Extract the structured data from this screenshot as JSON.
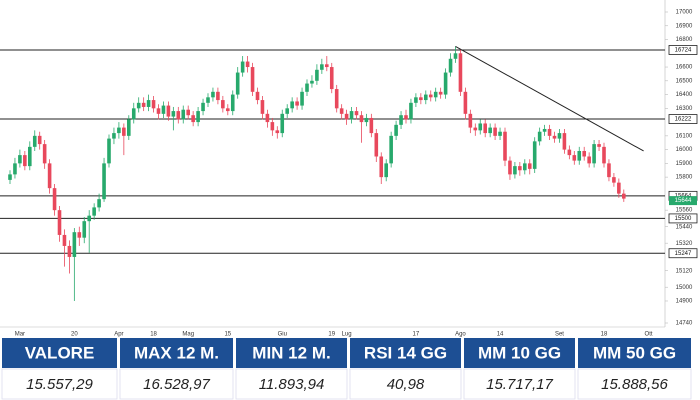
{
  "chart_data": {
    "type": "candlestick",
    "categories": [
      null,
      null,
      "Mar",
      null,
      null,
      null,
      null,
      null,
      null,
      null,
      null,
      null,
      null,
      "20",
      null,
      null,
      null,
      null,
      null,
      null,
      null,
      null,
      "Apr",
      null,
      null,
      null,
      null,
      null,
      null,
      "18",
      null,
      null,
      null,
      null,
      null,
      null,
      "Mag",
      null,
      null,
      null,
      null,
      null,
      null,
      null,
      "15",
      null,
      null,
      null,
      null,
      null,
      null,
      null,
      null,
      null,
      null,
      "Giu",
      null,
      null,
      null,
      null,
      null,
      null,
      null,
      null,
      null,
      "19",
      null,
      null,
      "Lug",
      null,
      null,
      null,
      null,
      null,
      null,
      null,
      null,
      null,
      null,
      null,
      null,
      null,
      "17",
      null,
      null,
      null,
      null,
      null,
      null,
      null,
      null,
      "Ago",
      null,
      null,
      null,
      null,
      null,
      null,
      null,
      "14",
      null,
      null,
      null,
      null,
      null,
      null,
      null,
      null,
      null,
      null,
      null,
      "Set",
      null,
      null,
      null,
      null,
      null,
      null,
      null,
      null,
      "18",
      null,
      null,
      null,
      null,
      null,
      null,
      null,
      null,
      "Ott"
    ],
    "open": [
      15780,
      15820,
      15900,
      15960,
      15880,
      16020,
      16100,
      16040,
      15900,
      15720,
      15560,
      15380,
      15300,
      15220,
      15400,
      15360,
      15480,
      15520,
      15580,
      15640,
      15900,
      16080,
      16120,
      16160,
      16100,
      16220,
      16300,
      16340,
      16310,
      16360,
      16300,
      16260,
      16320,
      16240,
      16280,
      16220,
      16290,
      16250,
      16200,
      16280,
      16340,
      16380,
      16420,
      16360,
      16300,
      16280,
      16400,
      16560,
      16640,
      16600,
      16420,
      16360,
      16260,
      16200,
      16140,
      16120,
      16260,
      16300,
      16350,
      16320,
      16420,
      16480,
      16500,
      16580,
      16620,
      16600,
      16440,
      16300,
      16260,
      16220,
      16280,
      16250,
      16200,
      16230,
      16120,
      15950,
      15800,
      15900,
      16100,
      16180,
      16250,
      16220,
      16340,
      16380,
      16360,
      16400,
      16380,
      16420,
      16400,
      16560,
      16660,
      16700,
      16420,
      16260,
      16160,
      16140,
      16190,
      16120,
      16160,
      16100,
      16130,
      15920,
      15820,
      15880,
      15850,
      15900,
      15860,
      16060,
      16130,
      16150,
      16100,
      16080,
      16120,
      16000,
      15960,
      15920,
      15990,
      15950,
      15900,
      16040,
      16020,
      15900,
      15800,
      15760,
      15680,
      null,
      null,
      null,
      null,
      null
    ],
    "high": [
      15850,
      15940,
      16000,
      15990,
      16060,
      16140,
      16130,
      16070,
      15930,
      15750,
      15590,
      15420,
      15340,
      15430,
      15440,
      15510,
      15560,
      15610,
      15680,
      15940,
      16110,
      16160,
      16200,
      16190,
      16250,
      16340,
      16380,
      16380,
      16400,
      16390,
      16330,
      16350,
      16350,
      16310,
      16310,
      16320,
      16320,
      16280,
      16310,
      16370,
      16410,
      16450,
      16450,
      16390,
      16330,
      16430,
      16600,
      16680,
      16680,
      16630,
      16450,
      16390,
      16290,
      16230,
      16170,
      16290,
      16330,
      16380,
      16380,
      16450,
      16510,
      16540,
      16620,
      16660,
      16680,
      16630,
      16470,
      16330,
      16290,
      16310,
      16310,
      16280,
      16260,
      16260,
      16150,
      15980,
      15930,
      16130,
      16210,
      16280,
      16290,
      16370,
      16410,
      16410,
      16430,
      16430,
      16450,
      16450,
      16590,
      16700,
      16750,
      16730,
      16450,
      16290,
      16190,
      16220,
      16220,
      16190,
      16190,
      16160,
      16160,
      15950,
      15910,
      15910,
      15930,
      15930,
      16090,
      16160,
      16180,
      16180,
      16130,
      16150,
      16150,
      16030,
      15990,
      16020,
      16020,
      15980,
      16070,
      16070,
      16050,
      15930,
      15830,
      15790,
      15710,
      null,
      null,
      null,
      null,
      null
    ],
    "low": [
      15750,
      15790,
      15870,
      15850,
      15850,
      15990,
      16000,
      15860,
      15680,
      15520,
      15330,
      15150,
      15100,
      14900,
      15300,
      15320,
      15250,
      15490,
      15550,
      15620,
      15870,
      16040,
      16080,
      15960,
      16070,
      16190,
      16270,
      16280,
      16280,
      16270,
      16220,
      16230,
      16210,
      16140,
      16190,
      16190,
      16220,
      16170,
      16170,
      16250,
      16310,
      16350,
      16330,
      16270,
      16250,
      16250,
      16370,
      16530,
      16560,
      16390,
      16330,
      16220,
      16160,
      16100,
      16080,
      16090,
      16230,
      16270,
      16290,
      16290,
      16390,
      16450,
      16470,
      16550,
      16570,
      16410,
      16270,
      16220,
      16180,
      16190,
      16220,
      16050,
      16170,
      16090,
      15910,
      15750,
      15770,
      15870,
      16070,
      16150,
      16190,
      16190,
      16310,
      16330,
      16330,
      16350,
      16350,
      16370,
      16370,
      16530,
      16630,
      16390,
      16220,
      16120,
      16100,
      16110,
      16090,
      16090,
      16070,
      16070,
      15880,
      15780,
      15790,
      15810,
      15820,
      15820,
      15830,
      16030,
      16100,
      16070,
      16050,
      16050,
      15970,
      15930,
      15890,
      15890,
      15920,
      15870,
      15870,
      15990,
      15870,
      15770,
      15730,
      15650,
      15620,
      null,
      null,
      null,
      null,
      null
    ],
    "close": [
      15820,
      15900,
      15960,
      15880,
      16020,
      16100,
      16040,
      15900,
      15720,
      15560,
      15380,
      15300,
      15220,
      15400,
      15360,
      15480,
      15520,
      15580,
      15640,
      15900,
      16080,
      16120,
      16160,
      16100,
      16220,
      16300,
      16340,
      16310,
      16360,
      16300,
      16260,
      16320,
      16240,
      16280,
      16220,
      16290,
      16250,
      16200,
      16280,
      16340,
      16380,
      16420,
      16360,
      16300,
      16280,
      16400,
      16560,
      16640,
      16600,
      16420,
      16360,
      16260,
      16200,
      16140,
      16120,
      16260,
      16300,
      16350,
      16320,
      16420,
      16480,
      16500,
      16580,
      16620,
      16600,
      16440,
      16300,
      16260,
      16220,
      16280,
      16250,
      16200,
      16230,
      16120,
      15950,
      15800,
      15900,
      16100,
      16180,
      16250,
      16220,
      16340,
      16380,
      16360,
      16400,
      16380,
      16420,
      16400,
      16560,
      16660,
      16700,
      16420,
      16260,
      16160,
      16140,
      16190,
      16120,
      16160,
      16100,
      16130,
      15920,
      15820,
      15880,
      15850,
      15900,
      15860,
      16060,
      16130,
      16150,
      16100,
      16080,
      16120,
      16000,
      15960,
      15920,
      15990,
      15950,
      15900,
      16040,
      16020,
      15900,
      15800,
      15760,
      15680,
      15644,
      null,
      null,
      null,
      null,
      null
    ],
    "up_color": "#27a96c",
    "down_color": "#e8485c",
    "ylim": [
      14740,
      17000
    ],
    "yticks": [
      17000,
      16900,
      16800,
      16600,
      16500,
      16400,
      16300,
      16100,
      16000,
      15900,
      15800,
      15560,
      15440,
      15320,
      15120,
      15000,
      14900,
      14740
    ],
    "grid": false,
    "levels": [
      16724,
      16222,
      15664,
      15500,
      15247
    ],
    "last_price": 15644,
    "last_price_color": "#27a96c",
    "trendline": {
      "x": [
        90,
        128
      ],
      "y": [
        16750,
        15990
      ]
    }
  },
  "table": {
    "headers": [
      "VALORE",
      "MAX 12 M.",
      "MIN 12 M.",
      "RSI 14 GG",
      "MM 10 GG",
      "MM 50 GG"
    ],
    "values": [
      "15.557,29",
      "16.528,97",
      "11.893,94",
      "40,98",
      "15.717,17",
      "15.888,56"
    ]
  }
}
